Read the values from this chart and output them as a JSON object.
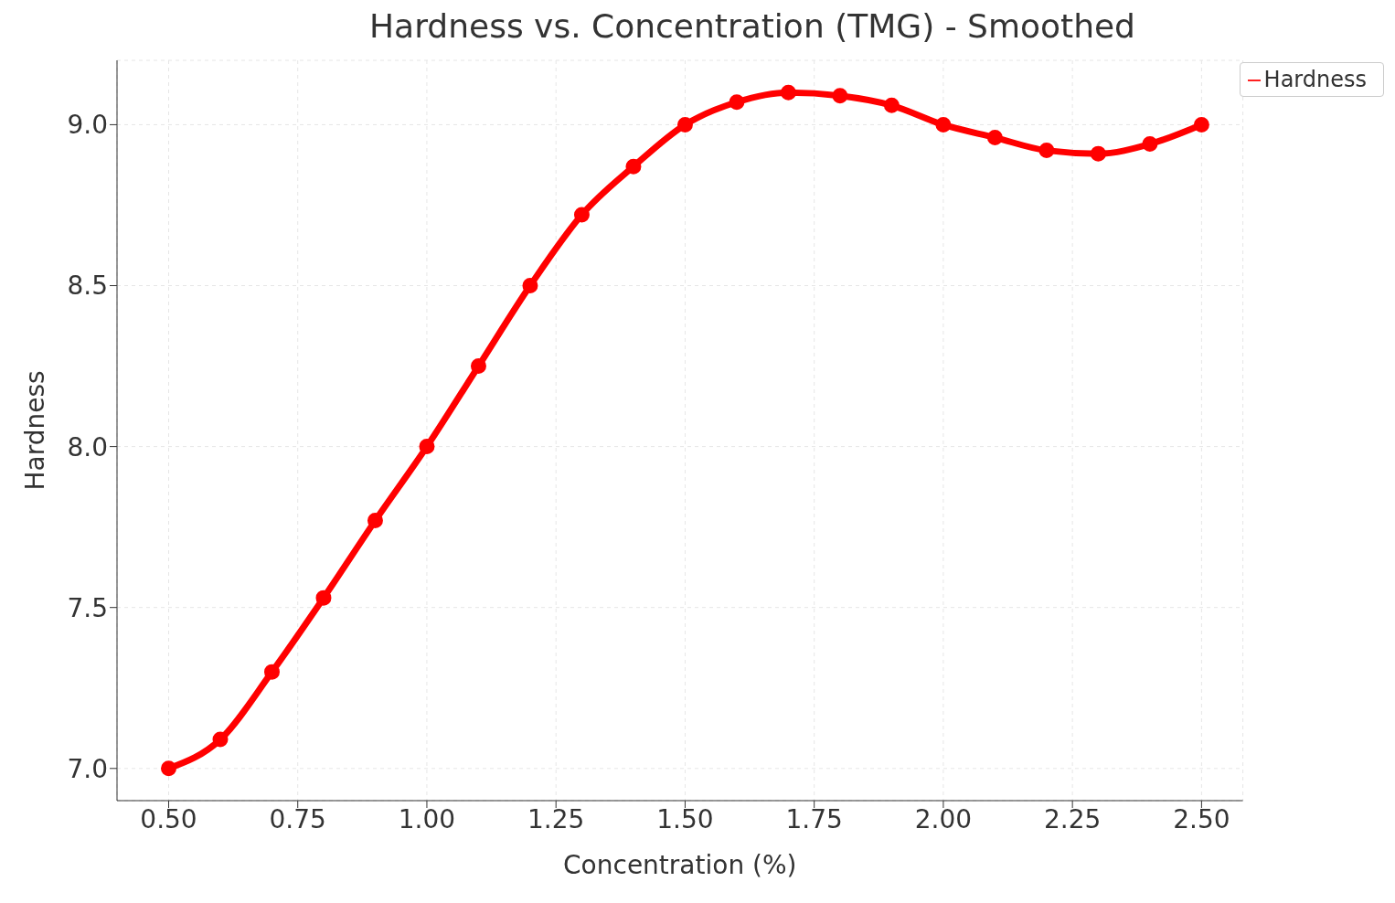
{
  "chart_data": {
    "type": "line",
    "title": "Hardness vs. Concentration (TMG) - Smoothed",
    "xlabel": "Concentration (%)",
    "ylabel": "Hardness",
    "x": [
      0.5,
      0.6,
      0.7,
      0.8,
      0.9,
      1.0,
      1.1,
      1.2,
      1.3,
      1.4,
      1.5,
      1.6,
      1.7,
      1.8,
      1.9,
      2.0,
      2.1,
      2.2,
      2.3,
      2.4,
      2.5
    ],
    "series": [
      {
        "name": "Hardness",
        "color": "#ff0000",
        "values": [
          7.0,
          7.09,
          7.3,
          7.53,
          7.77,
          8.0,
          8.25,
          8.5,
          8.72,
          8.87,
          9.0,
          9.07,
          9.1,
          9.09,
          9.06,
          9.0,
          8.96,
          8.92,
          8.91,
          8.94,
          9.0
        ]
      }
    ],
    "xlim": [
      0.4,
      2.58
    ],
    "ylim": [
      6.9,
      9.2
    ],
    "xticks": [
      {
        "value": 0.5,
        "label": "0.50"
      },
      {
        "value": 0.75,
        "label": "0.75"
      },
      {
        "value": 1,
        "label": "1.00"
      },
      {
        "value": 1.25,
        "label": "1.25"
      },
      {
        "value": 1.5,
        "label": "1.50"
      },
      {
        "value": 1.75,
        "label": "1.75"
      },
      {
        "value": 2,
        "label": "2.00"
      },
      {
        "value": 2.25,
        "label": "2.25"
      },
      {
        "value": 2.5,
        "label": "2.50"
      }
    ],
    "yticks": [
      {
        "value": 7,
        "label": "7.0"
      },
      {
        "value": 7.5,
        "label": "7.5"
      },
      {
        "value": 8,
        "label": "8.0"
      },
      {
        "value": 8.5,
        "label": "8.5"
      },
      {
        "value": 9,
        "label": "9.0"
      }
    ],
    "grid": true,
    "legend": "top right",
    "marker": "circle",
    "line_style": "solid"
  }
}
